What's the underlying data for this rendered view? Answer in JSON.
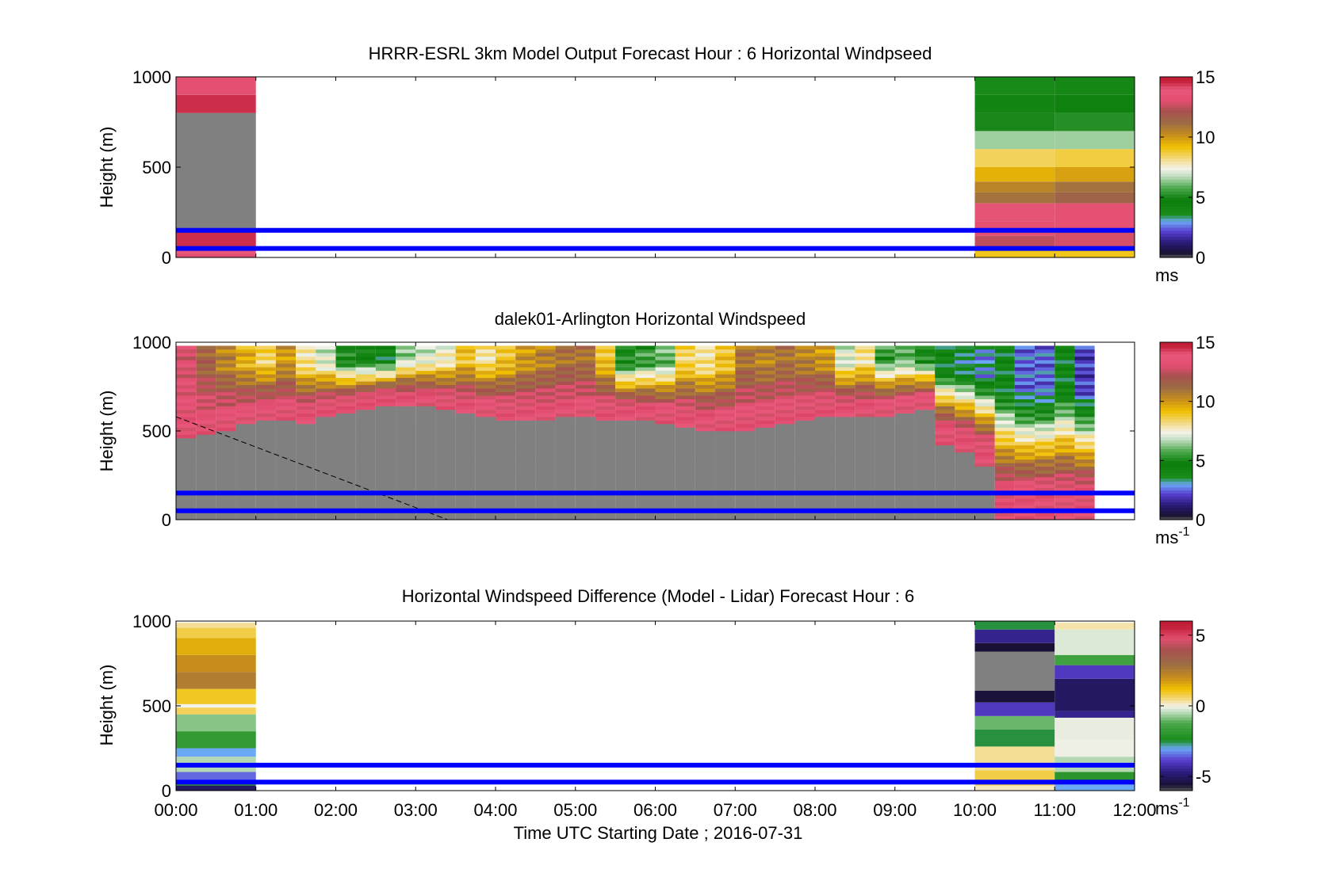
{
  "figure": {
    "xlabel": "Time UTC  Starting Date ; 2016-07-31",
    "x_ticks": [
      "00:00",
      "01:00",
      "02:00",
      "03:00",
      "04:00",
      "05:00",
      "06:00",
      "07:00",
      "08:00",
      "09:00",
      "10:00",
      "11:00",
      "12:00"
    ],
    "x_range_hours": [
      0,
      12
    ],
    "reference_lines": {
      "color": "#0000ff",
      "heights_m": [
        150,
        50
      ]
    }
  },
  "chart_data": [
    {
      "type": "heatmap",
      "title": "HRRR-ESRL 3km Model Output   Forecast Hour : 6 Horizontal Windpseed",
      "ylabel": "Height (m)",
      "ylim": [
        0,
        1000
      ],
      "y_ticks": [
        "0",
        "500",
        "1000"
      ],
      "colorbar": {
        "range": [
          0,
          15
        ],
        "ticks": [
          "0",
          "5",
          "10",
          "15"
        ],
        "unit_base": "ms",
        "unit_sup": ""
      },
      "columns": [
        {
          "x_start": 0,
          "x_end": 1,
          "bands": [
            {
              "y0": 0,
              "y1": 20,
              "v": 13
            },
            {
              "y0": 20,
              "y1": 60,
              "v": 14
            },
            {
              "y0": 60,
              "y1": 140,
              "v": 14.5
            },
            {
              "y0": 140,
              "y1": 800,
              "v": 0.2
            },
            {
              "y0": 800,
              "y1": 900,
              "v": 14.5
            },
            {
              "y0": 900,
              "y1": 1000,
              "v": 13.2
            }
          ]
        },
        {
          "x_start": 10,
          "x_end": 11,
          "bands": [
            {
              "y0": 0,
              "y1": 60,
              "v": 9
            },
            {
              "y0": 60,
              "y1": 120,
              "v": 12.5
            },
            {
              "y0": 120,
              "y1": 200,
              "v": 13.2
            },
            {
              "y0": 200,
              "y1": 300,
              "v": 13.5
            },
            {
              "y0": 300,
              "y1": 360,
              "v": 11
            },
            {
              "y0": 360,
              "y1": 420,
              "v": 10.5
            },
            {
              "y0": 420,
              "y1": 500,
              "v": 9.5
            },
            {
              "y0": 500,
              "y1": 600,
              "v": 8.5
            },
            {
              "y0": 600,
              "y1": 700,
              "v": 6.5
            },
            {
              "y0": 700,
              "y1": 800,
              "v": 5
            },
            {
              "y0": 800,
              "y1": 900,
              "v": 4.2
            },
            {
              "y0": 900,
              "y1": 1000,
              "v": 3.8
            }
          ]
        },
        {
          "x_start": 11,
          "x_end": 12,
          "bands": [
            {
              "y0": 0,
              "y1": 60,
              "v": 9
            },
            {
              "y0": 60,
              "y1": 140,
              "v": 12.8
            },
            {
              "y0": 140,
              "y1": 300,
              "v": 13.3
            },
            {
              "y0": 300,
              "y1": 360,
              "v": 11.5
            },
            {
              "y0": 360,
              "y1": 420,
              "v": 11
            },
            {
              "y0": 420,
              "y1": 500,
              "v": 9.8
            },
            {
              "y0": 500,
              "y1": 600,
              "v": 8.7
            },
            {
              "y0": 600,
              "y1": 700,
              "v": 6.5
            },
            {
              "y0": 700,
              "y1": 800,
              "v": 5.2
            },
            {
              "y0": 800,
              "y1": 900,
              "v": 4.5
            },
            {
              "y0": 900,
              "y1": 1000,
              "v": 4
            }
          ]
        }
      ]
    },
    {
      "type": "heatmap",
      "title": "dalek01-Arlington  Horizontal Windspeed",
      "ylabel": "Height (m)",
      "ylim": [
        0,
        1000
      ],
      "y_ticks": [
        "0",
        "500",
        "1000"
      ],
      "colorbar": {
        "range": [
          0,
          15
        ],
        "ticks": [
          "0",
          "5",
          "10",
          "15"
        ],
        "unit_base": "ms",
        "unit_sup": "-1"
      },
      "time_step_hours": 0.25,
      "columns_top_speed": [
        13,
        11.5,
        10.5,
        9.5,
        8.5,
        10,
        8,
        7,
        5,
        4.5,
        4,
        6.5,
        7,
        7.5,
        9,
        8,
        9,
        10,
        10.5,
        11,
        11,
        9,
        5,
        5.5,
        6,
        8.5,
        8,
        9,
        11,
        10.5,
        11,
        10.5,
        10,
        7,
        8,
        5.5,
        6,
        5,
        4,
        3.5,
        3,
        4,
        2.5,
        2.5,
        4,
        2
      ],
      "gray_boundary_m": [
        460,
        480,
        500,
        530,
        560,
        550,
        540,
        580,
        600,
        620,
        640,
        640,
        640,
        620,
        600,
        580,
        560,
        560,
        560,
        580,
        570,
        560,
        560,
        560,
        540,
        520,
        500,
        490,
        500,
        520,
        540,
        560,
        580,
        580,
        580,
        580,
        600,
        620,
        420,
        380,
        300,
        0,
        0,
        0,
        0,
        0
      ],
      "transition_color_value": 13.5,
      "dashed_line": {
        "from": [
          0,
          580
        ],
        "to": [
          3.4,
          0
        ]
      }
    },
    {
      "type": "heatmap",
      "title": "Horizontal Windspeed Difference (Model - Lidar) Forecast Hour : 6",
      "ylabel": "Height (m)",
      "ylim": [
        0,
        1000
      ],
      "y_ticks": [
        "0",
        "500",
        "1000"
      ],
      "colorbar": {
        "range": [
          -6,
          6
        ],
        "ticks": [
          "-5",
          "0",
          "5"
        ],
        "unit_base": "ms",
        "unit_sup": "-1"
      },
      "columns": [
        {
          "x_start": 0,
          "x_end": 1,
          "bands": [
            {
              "y0": 0,
              "y1": 30,
              "v": -5
            },
            {
              "y0": 30,
              "y1": 60,
              "v": -2
            },
            {
              "y0": 60,
              "y1": 110,
              "v": -3.5
            },
            {
              "y0": 110,
              "y1": 200,
              "v": -0.5
            },
            {
              "y0": 200,
              "y1": 250,
              "v": -3
            },
            {
              "y0": 250,
              "y1": 350,
              "v": -1.8
            },
            {
              "y0": 350,
              "y1": 450,
              "v": -0.8
            },
            {
              "y0": 450,
              "y1": 490,
              "v": 0.7
            },
            {
              "y0": 490,
              "y1": 510,
              "v": -0.01
            },
            {
              "y0": 510,
              "y1": 600,
              "v": 1
            },
            {
              "y0": 600,
              "y1": 700,
              "v": 2.5
            },
            {
              "y0": 700,
              "y1": 800,
              "v": 2
            },
            {
              "y0": 800,
              "y1": 900,
              "v": 1.5
            },
            {
              "y0": 900,
              "y1": 960,
              "v": 0.8
            },
            {
              "y0": 960,
              "y1": 990,
              "v": 0.4
            }
          ]
        },
        {
          "x_start": 10,
          "x_end": 11,
          "bands": [
            {
              "y0": 0,
              "y1": 30,
              "v": 0.2
            },
            {
              "y0": 30,
              "y1": 120,
              "v": 0.8
            },
            {
              "y0": 120,
              "y1": 260,
              "v": 0.4
            },
            {
              "y0": 260,
              "y1": 360,
              "v": -2.5
            },
            {
              "y0": 360,
              "y1": 440,
              "v": -1
            },
            {
              "y0": 440,
              "y1": 520,
              "v": -4
            },
            {
              "y0": 520,
              "y1": 590,
              "v": -5.5
            },
            {
              "y0": 590,
              "y1": 820,
              "v": -9
            },
            {
              "y0": 820,
              "y1": 870,
              "v": -5.6
            },
            {
              "y0": 870,
              "y1": 950,
              "v": -4.5
            },
            {
              "y0": 950,
              "y1": 1000,
              "v": -2.5
            }
          ]
        },
        {
          "x_start": 11,
          "x_end": 12,
          "bands": [
            {
              "y0": 0,
              "y1": 40,
              "v": -3
            },
            {
              "y0": 40,
              "y1": 110,
              "v": -2
            },
            {
              "y0": 110,
              "y1": 200,
              "v": -0.5
            },
            {
              "y0": 200,
              "y1": 300,
              "v": -0.05
            },
            {
              "y0": 300,
              "y1": 430,
              "v": -0.1
            },
            {
              "y0": 430,
              "y1": 470,
              "v": -4.5
            },
            {
              "y0": 470,
              "y1": 660,
              "v": -5
            },
            {
              "y0": 660,
              "y1": 740,
              "v": -4
            },
            {
              "y0": 740,
              "y1": 800,
              "v": -1.5
            },
            {
              "y0": 800,
              "y1": 950,
              "v": -0.2
            },
            {
              "y0": 950,
              "y1": 990,
              "v": 0.3
            }
          ]
        }
      ]
    }
  ]
}
